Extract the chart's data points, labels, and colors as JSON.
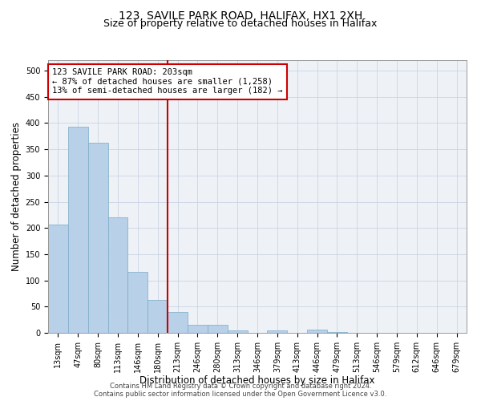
{
  "title": "123, SAVILE PARK ROAD, HALIFAX, HX1 2XH",
  "subtitle": "Size of property relative to detached houses in Halifax",
  "xlabel": "Distribution of detached houses by size in Halifax",
  "ylabel": "Number of detached properties",
  "footnote1": "Contains HM Land Registry data © Crown copyright and database right 2024.",
  "footnote2": "Contains public sector information licensed under the Open Government Licence v3.0.",
  "bin_labels": [
    "13sqm",
    "47sqm",
    "80sqm",
    "113sqm",
    "146sqm",
    "180sqm",
    "213sqm",
    "246sqm",
    "280sqm",
    "313sqm",
    "346sqm",
    "379sqm",
    "413sqm",
    "446sqm",
    "479sqm",
    "513sqm",
    "546sqm",
    "579sqm",
    "612sqm",
    "646sqm",
    "679sqm"
  ],
  "bar_values": [
    207,
    393,
    362,
    221,
    116,
    62,
    40,
    15,
    15,
    4,
    0,
    5,
    0,
    6,
    2,
    0,
    0,
    0,
    0,
    0,
    0
  ],
  "bar_color": "#b8d0e8",
  "bar_edge_color": "#7aaac8",
  "vline_x": 6.0,
  "vline_color": "#cc0000",
  "annotation_line1": "123 SAVILE PARK ROAD: 203sqm",
  "annotation_line2": "← 87% of detached houses are smaller (1,258)",
  "annotation_line3": "13% of semi-detached houses are larger (182) →",
  "annotation_box_color": "#cc0000",
  "ylim": [
    0,
    520
  ],
  "yticks": [
    0,
    50,
    100,
    150,
    200,
    250,
    300,
    350,
    400,
    450,
    500
  ],
  "bg_color": "#eef2f7",
  "grid_color": "#c5cfe0",
  "title_fontsize": 10,
  "subtitle_fontsize": 9,
  "xlabel_fontsize": 8.5,
  "ylabel_fontsize": 8.5,
  "tick_fontsize": 7,
  "annot_fontsize": 7.5,
  "footnote_fontsize": 6
}
